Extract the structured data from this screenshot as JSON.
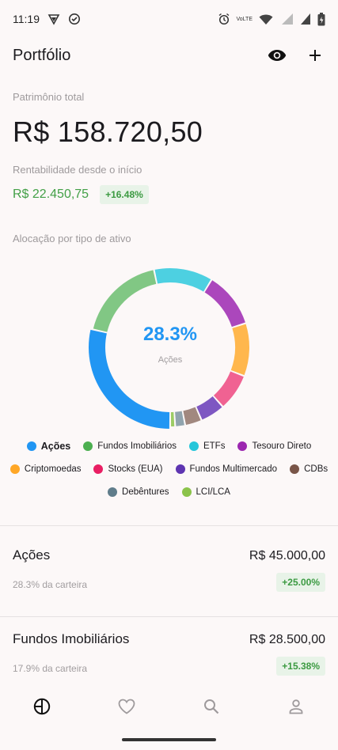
{
  "status_bar": {
    "time": "11:19",
    "icons": [
      "vpn-shield-icon",
      "check-circle-icon",
      "alarm-icon",
      "volte-icon",
      "wifi-icon",
      "signal-4g-icon",
      "signal-icon",
      "battery-icon"
    ],
    "volte_label": "VoLTE"
  },
  "app_bar": {
    "title": "Portfólio",
    "actions": [
      "eye-icon",
      "add-icon"
    ]
  },
  "summary": {
    "total_label": "Patrimônio total",
    "total_value": "R$ 158.720,50",
    "rent_label": "Rentabilidade desde o início",
    "rent_value": "R$ 22.450,75",
    "rent_pct": "+16.48%"
  },
  "allocation": {
    "label": "Alocação por tipo de ativo",
    "selected_pct": "28.3%",
    "selected_name": "Ações"
  },
  "chart_data": {
    "type": "pie",
    "donut": true,
    "categories": [
      "Ações",
      "Fundos Imobiliários",
      "ETFs",
      "Tesouro Direto",
      "Criptomoedas",
      "Stocks (EUA)",
      "Fundos Multimercado",
      "CDBs",
      "Debêntures",
      "LCI/LCA"
    ],
    "values": [
      28.3,
      17.9,
      11.9,
      11.2,
      10.7,
      7.5,
      5.0,
      3.4,
      2.0,
      1.0
    ],
    "colors": [
      "#2196f3",
      "#81c784",
      "#4dd0e1",
      "#ab47bc",
      "#ffb74d",
      "#f06292",
      "#7e57c2",
      "#a1887f",
      "#90a4ae",
      "#9ccc65"
    ],
    "legend_colors": [
      "#2196f3",
      "#4caf50",
      "#26c6da",
      "#9c27b0",
      "#ffa726",
      "#e91e63",
      "#5e35b1",
      "#795548",
      "#607d8b",
      "#8bc34a"
    ],
    "selected_index": 0,
    "legend_position": "bottom"
  },
  "assets": [
    {
      "name": "Ações",
      "share": "28.3% da carteira",
      "value": "R$ 45.000,00",
      "pct": "+25.00%"
    },
    {
      "name": "Fundos Imobiliários",
      "share": "17.9% da carteira",
      "value": "R$ 28.500,00",
      "pct": "+15.38%"
    }
  ],
  "bottom_nav": [
    "pie-chart-icon",
    "heart-icon",
    "search-icon",
    "profile-icon"
  ],
  "colors": {
    "positive": "#43a047",
    "accent": "#2196f3",
    "background": "#fcf8f8"
  }
}
